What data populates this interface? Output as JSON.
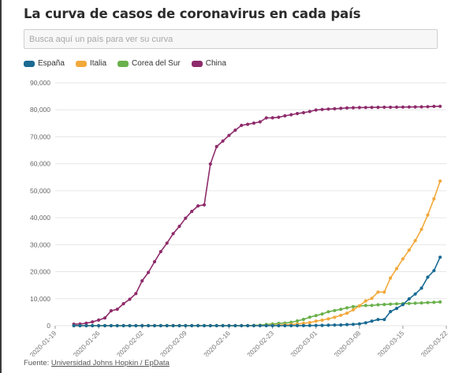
{
  "title": "La curva de casos de coronavirus en cada país",
  "search": {
    "placeholder": "Busca aquí un país para ver su curva",
    "value": ""
  },
  "legend": [
    {
      "label": "España",
      "color": "#1a6a93"
    },
    {
      "label": "Italia",
      "color": "#f2a93b"
    },
    {
      "label": "Corea del Sur",
      "color": "#6ab04c"
    },
    {
      "label": "China",
      "color": "#8e2c6b"
    }
  ],
  "source": {
    "prefix": "Fuente: ",
    "link": "Universidad Johns Hopkin / EpData"
  },
  "chart_data": {
    "type": "line",
    "title": "La curva de casos de coronavirus en cada país",
    "xlabel": "",
    "ylabel": "",
    "x_start": "2020-01-19",
    "x_end": "2020-03-22",
    "xticks": [
      "2020-01-19",
      "2020-01-26",
      "2020-02-02",
      "2020-02-09",
      "2020-02-16",
      "2020-02-23",
      "2020-03-01",
      "2020-03-08",
      "2020-03-15",
      "2020-03-22"
    ],
    "ylim": [
      0,
      90000
    ],
    "yticks": [
      "0",
      "10,000",
      "20,000",
      "30,000",
      "40,000",
      "50,000",
      "60,000",
      "70,000",
      "80,000",
      "90,000"
    ],
    "grid": true,
    "legend_position": "top-left",
    "x_dates": [
      "2020-01-22",
      "2020-01-23",
      "2020-01-24",
      "2020-01-25",
      "2020-01-26",
      "2020-01-27",
      "2020-01-28",
      "2020-01-29",
      "2020-01-30",
      "2020-01-31",
      "2020-02-01",
      "2020-02-02",
      "2020-02-03",
      "2020-02-04",
      "2020-02-05",
      "2020-02-06",
      "2020-02-07",
      "2020-02-08",
      "2020-02-09",
      "2020-02-10",
      "2020-02-11",
      "2020-02-12",
      "2020-02-13",
      "2020-02-14",
      "2020-02-15",
      "2020-02-16",
      "2020-02-17",
      "2020-02-18",
      "2020-02-19",
      "2020-02-20",
      "2020-02-21",
      "2020-02-22",
      "2020-02-23",
      "2020-02-24",
      "2020-02-25",
      "2020-02-26",
      "2020-02-27",
      "2020-02-28",
      "2020-02-29",
      "2020-03-01",
      "2020-03-02",
      "2020-03-03",
      "2020-03-04",
      "2020-03-05",
      "2020-03-06",
      "2020-03-07",
      "2020-03-08",
      "2020-03-09",
      "2020-03-10",
      "2020-03-11",
      "2020-03-12",
      "2020-03-13",
      "2020-03-14",
      "2020-03-15",
      "2020-03-16",
      "2020-03-17",
      "2020-03-18",
      "2020-03-19",
      "2020-03-20",
      "2020-03-21"
    ],
    "series": [
      {
        "name": "China",
        "color": "#8e2c6b",
        "values": [
          548,
          643,
          920,
          1406,
          2075,
          2877,
          5509,
          6087,
          8141,
          9802,
          11891,
          16630,
          19716,
          23707,
          27440,
          30587,
          34110,
          36814,
          39829,
          42354,
          44386,
          44759,
          59895,
          66358,
          68413,
          70513,
          72434,
          74211,
          74619,
          75077,
          75550,
          77001,
          77022,
          77241,
          77754,
          78166,
          78600,
          78928,
          79356,
          79932,
          80136,
          80261,
          80386,
          80537,
          80690,
          80770,
          80823,
          80860,
          80887,
          80921,
          80932,
          80945,
          80977,
          81003,
          81033,
          81058,
          81102,
          81156,
          81250,
          81305
        ]
      },
      {
        "name": "Corea del Sur",
        "color": "#6ab04c",
        "values": [
          1,
          1,
          2,
          2,
          3,
          4,
          4,
          4,
          4,
          11,
          12,
          15,
          15,
          16,
          19,
          23,
          24,
          24,
          25,
          27,
          28,
          28,
          28,
          28,
          28,
          29,
          30,
          31,
          31,
          104,
          204,
          433,
          602,
          833,
          977,
          1261,
          1766,
          2337,
          3150,
          3736,
          4335,
          5186,
          5621,
          6088,
          6593,
          7041,
          7314,
          7478,
          7513,
          7755,
          7869,
          7979,
          8086,
          8162,
          8236,
          8320,
          8413,
          8565,
          8652,
          8799
        ]
      },
      {
        "name": "Italia",
        "color": "#f2a93b",
        "values": [
          0,
          0,
          0,
          0,
          0,
          0,
          0,
          0,
          0,
          2,
          2,
          2,
          2,
          2,
          2,
          2,
          3,
          3,
          3,
          3,
          3,
          3,
          3,
          3,
          3,
          3,
          3,
          3,
          3,
          3,
          20,
          62,
          155,
          229,
          322,
          453,
          655,
          888,
          1128,
          1694,
          2036,
          2502,
          3089,
          3858,
          4636,
          5883,
          7375,
          9172,
          10149,
          12462,
          12462,
          17660,
          21157,
          24747,
          27980,
          31506,
          35713,
          41035,
          47021,
          53578
        ]
      },
      {
        "name": "España",
        "color": "#1a6a93",
        "values": [
          0,
          0,
          0,
          0,
          0,
          0,
          0,
          0,
          0,
          0,
          1,
          1,
          1,
          1,
          1,
          1,
          1,
          1,
          2,
          2,
          2,
          2,
          2,
          2,
          2,
          2,
          2,
          2,
          2,
          2,
          2,
          2,
          2,
          2,
          6,
          13,
          15,
          32,
          45,
          84,
          120,
          165,
          222,
          259,
          400,
          500,
          673,
          1073,
          1695,
          2277,
          2277,
          5232,
          6391,
          7798,
          9942,
          11748,
          13910,
          17963,
          20410,
          25374
        ]
      }
    ]
  }
}
